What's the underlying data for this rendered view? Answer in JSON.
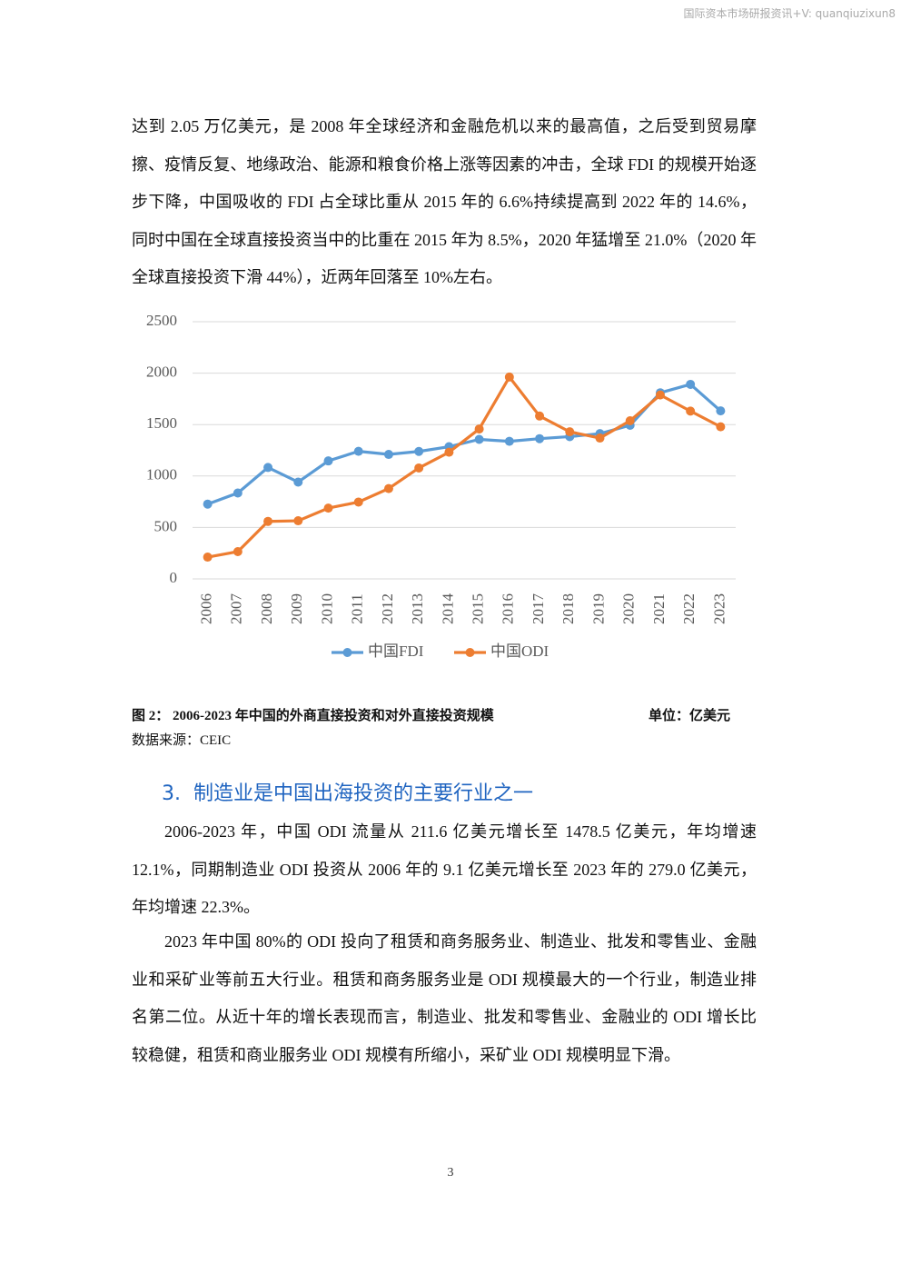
{
  "header": {
    "watermark": "国际资本市场研报资讯+V: quanqiuzixun8"
  },
  "intro_paragraph": "达到 2.05 万亿美元，是 2008 年全球经济和金融危机以来的最高值，之后受到贸易摩擦、疫情反复、地缘政治、能源和粮食价格上涨等因素的冲击，全球 FDI 的规模开始逐步下降，中国吸收的 FDI 占全球比重从 2015 年的 6.6%持续提高到 2022 年的 14.6%，同时中国在全球直接投资当中的比重在 2015 年为 8.5%，2020 年猛增至 21.0%（2020 年全球直接投资下滑 44%），近两年回落至 10%左右。",
  "chart_data": {
    "type": "line",
    "categories": [
      "2006",
      "2007",
      "2008",
      "2009",
      "2010",
      "2011",
      "2012",
      "2013",
      "2014",
      "2015",
      "2016",
      "2017",
      "2018",
      "2019",
      "2020",
      "2021",
      "2022",
      "2023"
    ],
    "series": [
      {
        "name": "中国FDI",
        "color": "#5b9bd5",
        "values": [
          727,
          835,
          1083,
          941,
          1147,
          1240,
          1210,
          1239,
          1285,
          1356,
          1337,
          1363,
          1383,
          1412,
          1493,
          1809,
          1891,
          1633
        ]
      },
      {
        "name": "中国ODI",
        "color": "#ed7d31",
        "values": [
          211.6,
          265,
          559,
          565,
          688,
          747,
          878,
          1078,
          1231,
          1457,
          1962,
          1583,
          1430,
          1369,
          1537,
          1788,
          1631,
          1478.5
        ]
      }
    ],
    "ylim": [
      0,
      2500
    ],
    "yticks": [
      0,
      500,
      1000,
      1500,
      2000,
      2500
    ],
    "grid": true,
    "legend": "bottom"
  },
  "caption": {
    "title": "图 2：  2006-2023 年中国的外商直接投资和对外直接投资规模",
    "unit": "单位：亿美元",
    "source": "数据来源：CEIC"
  },
  "section": {
    "heading": "3.  制造业是中国出海投资的主要行业之一",
    "paragraphs": [
      "2006-2023 年，中国 ODI 流量从 211.6 亿美元增长至 1478.5 亿美元，年均增速 12.1%，同期制造业 ODI 投资从 2006 年的 9.1 亿美元增长至 2023 年的 279.0 亿美元，年均增速 22.3%。",
      "2023 年中国 80%的 ODI 投向了租赁和商务服务业、制造业、批发和零售业、金融业和采矿业等前五大行业。租赁和商务服务业是 ODI 规模最大的一个行业，制造业排名第二位。从近十年的增长表现而言，制造业、批发和零售业、金融业的 ODI 增长比较稳健，租赁和商业服务业 ODI 规模有所缩小，采矿业 ODI 规模明显下滑。"
    ]
  },
  "footer": {
    "page_number": "3"
  }
}
